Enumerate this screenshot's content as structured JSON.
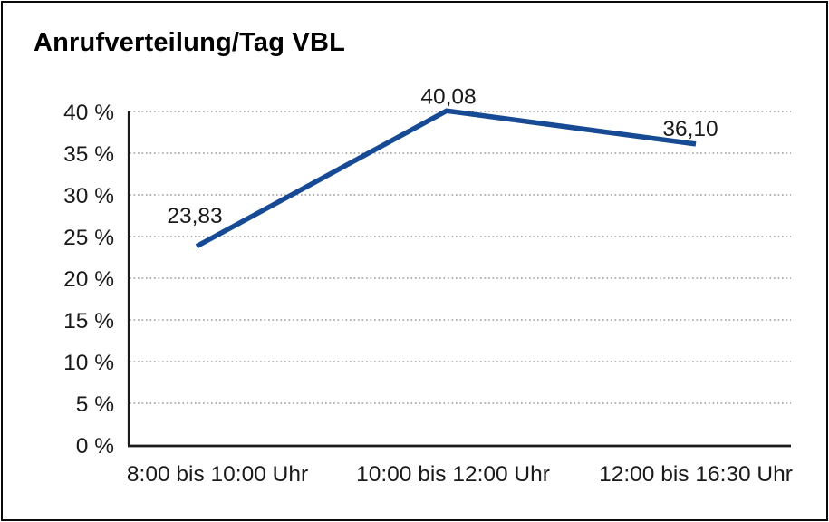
{
  "chart": {
    "title": "Anrufverteilung/Tag VBL"
  },
  "chart_data": {
    "type": "line",
    "title": "Anrufverteilung/Tag VBL",
    "categories": [
      "8:00 bis 10:00 Uhr",
      "10:00 bis 12:00 Uhr",
      "12:00 bis 16:30 Uhr"
    ],
    "values": [
      23.83,
      40.08,
      36.1
    ],
    "point_labels": [
      "23,83",
      "40,08",
      "36,10"
    ],
    "y_tick_labels": [
      "0 %",
      "5 %",
      "10 %",
      "15 %",
      "20 %",
      "25 %",
      "30 %",
      "35 %",
      "40 %"
    ],
    "y_tick_step": 5,
    "ylim": [
      0,
      40
    ],
    "xlabel": "",
    "ylabel": "",
    "legend": "none",
    "grid": "horizontal-dotted",
    "line_color": "#164a94",
    "axis_color": "#1a1a1a",
    "grid_color": "#8a8a8a",
    "text_color": "#1a1a1a",
    "background_color": "#ffffff",
    "border_color": "#0a0a0a"
  }
}
